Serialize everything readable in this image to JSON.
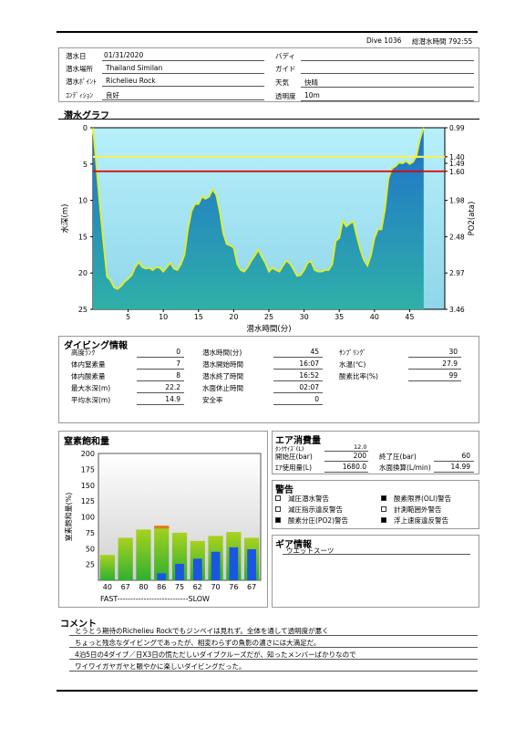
{
  "header": {
    "dive_label": "Dive 1036",
    "total_label": "総潜水時間 792:55"
  },
  "info": {
    "date_label": "潜水日",
    "date": "01/31/2020",
    "place_label": "潜水場所",
    "place": "Thailand Similan",
    "point_label": "潜水ﾎﾟｲﾝﾄ",
    "point": "Richelieu Rock",
    "condition_label": "ｺﾝﾃﾞｨｼｮﾝ",
    "condition": "良好",
    "buddy_label": "バディ",
    "buddy": "",
    "guide_label": "ガイド",
    "guide": "",
    "weather_label": "天気",
    "weather": "快晴",
    "visibility_label": "透明度",
    "visibility": "10m"
  },
  "graph": {
    "title": "潜水グラフ",
    "ylabel": "水深(m)",
    "y2label": "PO2(ata)",
    "xlabel": "潜水時間(分)"
  },
  "chart_data": [
    {
      "type": "area",
      "title": "潜水グラフ",
      "xlabel": "潜水時間(分)",
      "ylabel": "水深(m)",
      "y2label": "PO2(ata)",
      "xlim": [
        0,
        50
      ],
      "ylim": [
        25,
        0
      ],
      "xticks": [
        5,
        10,
        15,
        20,
        25,
        30,
        35,
        40,
        45
      ],
      "yticks": [
        0,
        5,
        10,
        15,
        20,
        25
      ],
      "y2_tick_labels": [
        "0.99",
        "1.40",
        "1.49",
        "1.60",
        "1.98",
        "2.48",
        "2.97",
        "3.46"
      ],
      "y2_tick_depths": [
        0,
        4,
        4.9,
        6,
        10,
        15,
        20,
        25
      ],
      "series": [
        {
          "x": [
            0,
            0.5,
            1,
            1.5,
            2,
            2.5,
            3,
            3.5,
            4,
            4.5,
            5,
            5.5,
            6,
            6.5,
            7,
            7.5,
            8,
            8.5,
            9,
            9.5,
            10,
            10.5,
            11,
            11.5,
            12,
            12.5,
            13,
            13.5,
            14,
            14.5,
            15,
            15.5,
            16,
            16.5,
            17,
            17.5,
            18,
            18.5,
            19,
            19.5,
            20,
            20.5,
            21,
            21.5,
            22,
            22.5,
            23,
            23.5,
            24,
            24.5,
            25,
            25.5,
            26,
            26.5,
            27,
            27.5,
            28,
            28.5,
            29,
            29.5,
            30,
            30.5,
            31,
            31.5,
            32,
            32.5,
            33,
            33.5,
            34,
            34.5,
            35,
            35.5,
            36,
            36.5,
            37,
            37.5,
            38,
            38.5,
            39,
            39.5,
            40,
            40.5,
            41,
            41.5,
            42,
            42.5,
            43,
            43.5,
            44,
            44.5,
            45,
            45.5,
            46,
            46.5,
            47
          ],
          "values": [
            0,
            5.5,
            11,
            16,
            20.5,
            21,
            22,
            22.2,
            21.8,
            21.2,
            20.8,
            20.3,
            19.2,
            18.5,
            19.2,
            19.4,
            19.3,
            19.6,
            19.2,
            19.3,
            19.8,
            19.2,
            18.6,
            19.4,
            19.6,
            18.8,
            17.5,
            14,
            11.5,
            10.5,
            10.5,
            9.5,
            9.8,
            9.5,
            8.5,
            9.2,
            11.5,
            14.5,
            16,
            16.2,
            16.5,
            18.8,
            19.6,
            19.8,
            19.2,
            18.3,
            17.6,
            16.8,
            17.8,
            18.6,
            19.8,
            19.3,
            19.6,
            19.8,
            19.0,
            18.3,
            18.7,
            19.5,
            20.4,
            20.3,
            19.6,
            18.6,
            18.4,
            19.6,
            19.8,
            19.8,
            19.6,
            19.6,
            18.8,
            15.6,
            15.2,
            12.8,
            13.6,
            13.2,
            12.9,
            15.0,
            16.8,
            18.2,
            19.0,
            17.6,
            15.2,
            14.0,
            14.0,
            11.2,
            7.0,
            5.6,
            5.3,
            4.8,
            4.9,
            4.6,
            5.0,
            4.7,
            3.8,
            1.5,
            0
          ]
        }
      ]
    },
    {
      "type": "bar",
      "title": "窒素飽和量",
      "ylabel": "窒素飽和量(%)",
      "ylim": [
        0,
        200
      ],
      "yticks": [
        25,
        50,
        75,
        100,
        125,
        150,
        175,
        200
      ],
      "categories": [
        "40",
        "67",
        "80",
        "86",
        "75",
        "62",
        "70",
        "76",
        "67"
      ],
      "series": [
        {
          "name": "green",
          "values": [
            40,
            67,
            80,
            86,
            75,
            62,
            70,
            76,
            67
          ]
        },
        {
          "name": "blue",
          "values": [
            0,
            0,
            0,
            11,
            26,
            34,
            45,
            52,
            49
          ]
        }
      ],
      "x_range_label": "FAST---------------------------SLOW"
    }
  ],
  "dive_info": {
    "title": "ダイビング情報",
    "col1": [
      {
        "label": "高度ﾗﾝｸ",
        "value": "0"
      },
      {
        "label": "体内窒素量",
        "value": "7"
      },
      {
        "label": "体内酸素量",
        "value": "8"
      },
      {
        "label": "最大水深(m)",
        "value": "22.2"
      },
      {
        "label": "平均水深(m)",
        "value": "14.9"
      }
    ],
    "col2": [
      {
        "label": "潜水時間(分)",
        "value": "45"
      },
      {
        "label": "潜水開始時間",
        "value": "16:07"
      },
      {
        "label": "潜水終了時間",
        "value": "16:52"
      },
      {
        "label": "水面休止時間",
        "value": "02:07"
      },
      {
        "label": "安全率",
        "value": "0"
      }
    ],
    "col3": [
      {
        "label": "ｻﾝﾌﾟﾘﾝｸﾞ",
        "value": "30"
      },
      {
        "label": "水温(℃)",
        "value": "27.9"
      },
      {
        "label": "酸素比率(%)",
        "value": "99"
      }
    ]
  },
  "nitrogen": {
    "title": "窒素飽和量",
    "ylabel": "窒素飽和量(%)"
  },
  "air": {
    "title": "エア消費量",
    "tank_label": "ﾀﾝｸｻｲｽﾞ(L)",
    "tank": "12.0",
    "start_label": "開始圧(bar)",
    "start": "200",
    "end_label": "終了圧(bar)",
    "end": "60",
    "use_label": "ｴｱ使用量(L)",
    "use": "1680.0",
    "surface_label": "水面換算(L/min)",
    "surface": "14.99"
  },
  "warnings": {
    "title": "警告",
    "items": [
      {
        "label": "減圧潜水警告",
        "checked": false
      },
      {
        "label": "酸素限界(OLI)警告",
        "checked": true
      },
      {
        "label": "減圧指示違反警告",
        "checked": false
      },
      {
        "label": "計測範囲外警告",
        "checked": false
      },
      {
        "label": "酸素分圧(PO2)警告",
        "checked": true
      },
      {
        "label": "浮上速度違反警告",
        "checked": true
      }
    ]
  },
  "gear": {
    "title": "ギア情報",
    "item": "ウエットスーツ"
  },
  "comment": {
    "title": "コメント",
    "lines": [
      "とうとう期待のRichelieu Rockでもジンベイは見れず。全体を通して透明度が悪く",
      "ちょっと残念なダイビングであったが、相変わらずの魚影の濃さには大満足だ。",
      "4泊5日の4ダイブ／日X3日の慌ただしいダイブクルーズだが、知ったメンバーばかりなので",
      "ワイワイガヤガヤと賑やかに楽しいダイビングだった。"
    ]
  }
}
